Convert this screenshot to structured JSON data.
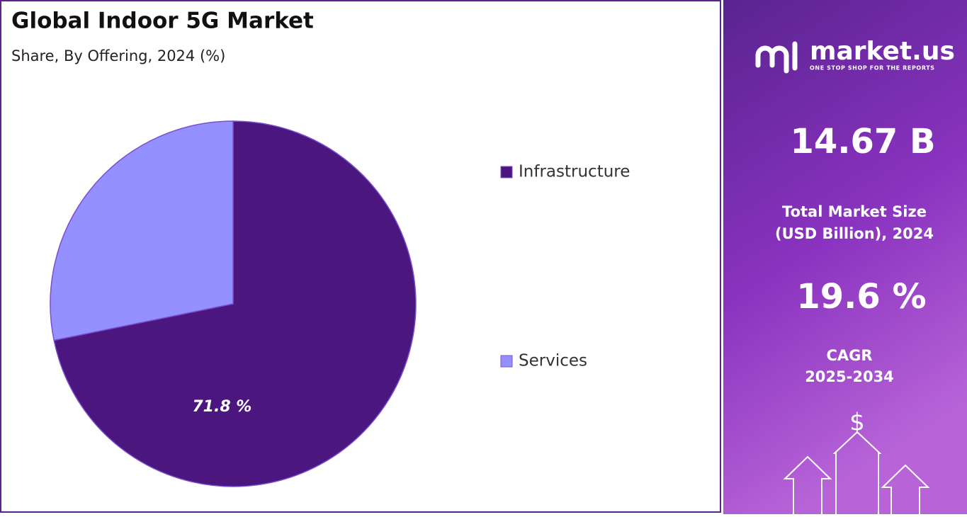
{
  "chart_data": {
    "type": "pie",
    "title": "Global Indoor 5G Market",
    "subtitle": "Share, By Offering, 2024 (%)",
    "categories": [
      "Infrastructure",
      "Services"
    ],
    "values": [
      71.8,
      28.2
    ],
    "value_labels": [
      "71.8 %",
      null
    ],
    "colors": [
      "#4b167d",
      "#9590ff"
    ],
    "legend": "right"
  },
  "sidebar": {
    "brand": "market.us",
    "tagline": "ONE STOP SHOP FOR THE REPORTS",
    "market_size": "14.67 B",
    "market_size_label": [
      "Total Market Size",
      "(USD Billion), 2024"
    ],
    "cagr": "19.6 %",
    "cagr_label": [
      "CAGR",
      "2025-2034"
    ],
    "currency_symbol": "$"
  }
}
